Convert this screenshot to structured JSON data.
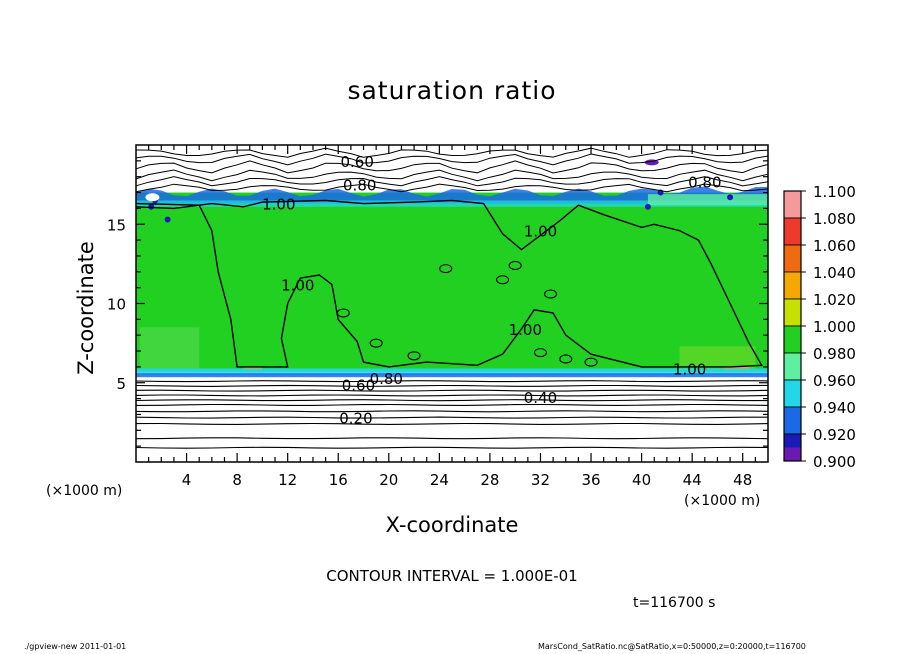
{
  "chart_data": {
    "type": "heatmap",
    "title": "saturation ratio",
    "xlabel": "X-coordinate",
    "ylabel": "Z-coordinate",
    "x_unit_label": "(×1000 m)",
    "y_unit_label": "(×1000 m)",
    "xlim": [
      0,
      50
    ],
    "ylim": [
      0,
      20
    ],
    "x_ticks": [
      4,
      8,
      12,
      16,
      20,
      24,
      28,
      32,
      36,
      40,
      44,
      48
    ],
    "y_ticks": [
      5,
      10,
      15
    ],
    "colorbar": {
      "levels": [
        "1.100",
        "1.080",
        "1.060",
        "1.040",
        "1.020",
        "1.000",
        "0.980",
        "0.960",
        "0.940",
        "0.920",
        "0.900"
      ],
      "colors": [
        "#f59a9a",
        "#ee3a2c",
        "#f06a10",
        "#f5a800",
        "#c8e000",
        "#22d022",
        "#5ef0a0",
        "#22d8e8",
        "#1a6ae8",
        "#1a1ab8",
        "#6a1ab0"
      ]
    },
    "contour_labels": [
      {
        "text": "0.60",
        "x": 17.5,
        "z": 19.0
      },
      {
        "text": "0.80",
        "x": 17.7,
        "z": 17.5
      },
      {
        "text": "0.80",
        "x": 45.0,
        "z": 17.7
      },
      {
        "text": "1.00",
        "x": 11.3,
        "z": 16.3
      },
      {
        "text": "1.00",
        "x": 32.0,
        "z": 14.6
      },
      {
        "text": "1.00",
        "x": 12.8,
        "z": 11.2
      },
      {
        "text": "1.00",
        "x": 30.8,
        "z": 8.4
      },
      {
        "text": "1.00",
        "x": 43.8,
        "z": 5.9
      },
      {
        "text": "0.80",
        "x": 19.8,
        "z": 5.3
      },
      {
        "text": "0.60",
        "x": 17.6,
        "z": 4.9
      },
      {
        "text": "0.40",
        "x": 32.0,
        "z": 4.1
      },
      {
        "text": "0.20",
        "x": 17.4,
        "z": 2.8
      }
    ],
    "contour_interval_text": "CONTOUR INTERVAL = 1.000E-01",
    "time_text": "t=116700 s"
  },
  "footer": {
    "left": "./gpview-new   2011-01-01",
    "right": "MarsCond_SatRatio.nc@SatRatio,x=0:50000,z=0:20000,t=116700"
  }
}
